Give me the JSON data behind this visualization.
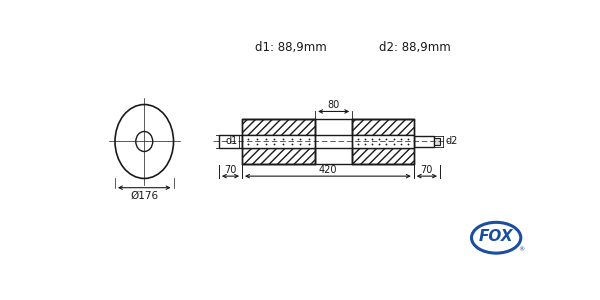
{
  "bg_color": "#ffffff",
  "line_color": "#1a1a1a",
  "hatch_color": "#000000",
  "text_color": "#1a1a1a",
  "fox_blue": "#1a4fa0",
  "title_d1": "d1: 88,9mm",
  "title_d2": "d2: 88,9mm",
  "dim_phi176": "Ø176",
  "dim_d1": "d1",
  "dim_d2": "d2",
  "dim_70_left": "70",
  "dim_420": "420",
  "dim_70_right": "70",
  "dim_80": "80",
  "fox_text": "FOX",
  "lw": 1.0
}
